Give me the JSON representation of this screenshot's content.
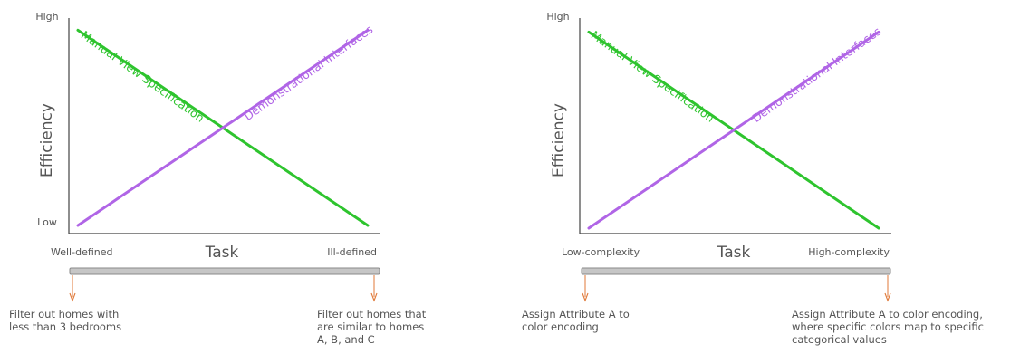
{
  "colors": {
    "manual": "#2ec42e",
    "demonstrational": "#b065e6",
    "axis": "#444444",
    "bar_fill": "#c6c6c6",
    "bar_stroke": "#8a8a8a",
    "arrow": "#e07a3a"
  },
  "chart_data": [
    {
      "type": "line",
      "ylabel": "Efficiency",
      "xlabel": "Task",
      "y_ticks": {
        "high": "High",
        "low": "Low"
      },
      "x_ticks": {
        "left": "Well-defined",
        "right": "Ill-defined"
      },
      "x": [
        0,
        1
      ],
      "series": [
        {
          "name": "Manual View Specification",
          "values": [
            0.95,
            0.0
          ]
        },
        {
          "name": "Demonstrational Interfaces",
          "values": [
            0.0,
            0.95
          ]
        }
      ],
      "examples": {
        "left": [
          "Filter out homes with",
          "less than 3 bedrooms"
        ],
        "right": [
          "Filter out homes that",
          "are similar to homes",
          "A, B, and C"
        ]
      }
    },
    {
      "type": "line",
      "ylabel": "Efficiency",
      "xlabel": "Task",
      "y_ticks": {
        "high": "High",
        "low": ""
      },
      "x_ticks": {
        "left": "Low-complexity",
        "right": "High-complexity"
      },
      "x": [
        0,
        1
      ],
      "series": [
        {
          "name": "Manual View Specification",
          "values": [
            0.95,
            0.0
          ]
        },
        {
          "name": "Demonstrational Interfaces",
          "values": [
            0.0,
            0.95
          ]
        }
      ],
      "examples": {
        "left": [
          "Assign Attribute A to",
          "color encoding"
        ],
        "right": [
          "Assign Attribute A to color encoding,",
          "where specific colors map to specific",
          "categorical values"
        ]
      }
    }
  ]
}
